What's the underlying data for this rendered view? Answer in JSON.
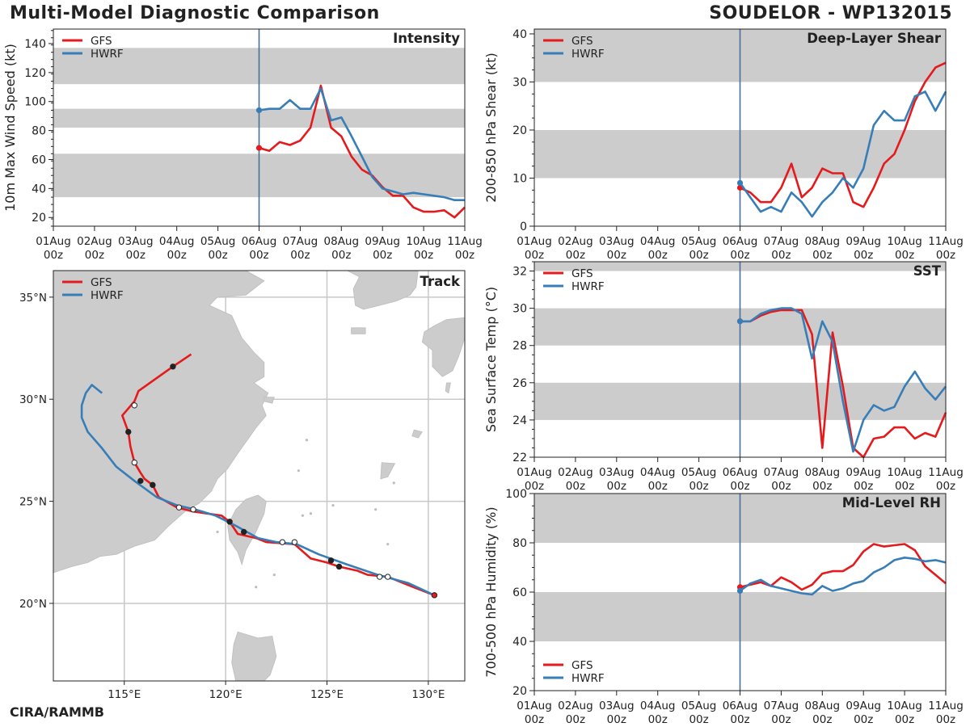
{
  "header": {
    "title": "Multi-Model Diagnostic Comparison",
    "storm": "SOUDELOR - WP132015",
    "credit": "CIRA/RAMMB"
  },
  "colors": {
    "gfs": "#e41a1c",
    "hwrf": "#377eb8",
    "band": "#cccccc",
    "land": "#cccccc",
    "vline": "#4a6f99"
  },
  "legend": [
    "GFS",
    "HWRF"
  ],
  "time_ticks": [
    "01Aug\n00z",
    "02Aug\n00z",
    "03Aug\n00z",
    "04Aug\n00z",
    "05Aug\n00z",
    "06Aug\n00z",
    "07Aug\n00z",
    "08Aug\n00z",
    "09Aug\n00z",
    "10Aug\n00z",
    "11Aug\n00z"
  ],
  "chart_data": [
    {
      "id": "intensity",
      "type": "line",
      "title": "Intensity",
      "ylabel": "10m Max Wind Speed (kt)",
      "xlabel": "",
      "xlim": [
        0,
        240
      ],
      "ylim": [
        14,
        150
      ],
      "yticks": [
        20,
        40,
        60,
        80,
        100,
        120,
        140
      ],
      "bands": [
        [
          34,
          64
        ],
        [
          82,
          95
        ],
        [
          112,
          137
        ]
      ],
      "vline": 120,
      "legend_pos": "top-left",
      "series": [
        {
          "name": "GFS",
          "x": [
            120,
            126,
            132,
            138,
            144,
            150,
            156,
            162,
            168,
            174,
            180,
            186,
            192,
            198,
            204,
            210,
            216,
            222,
            228,
            234,
            240
          ],
          "y": [
            68,
            66,
            72,
            70,
            73,
            82,
            111,
            82,
            76,
            62,
            53,
            49,
            41,
            35,
            35,
            27,
            24,
            24,
            25,
            20,
            27
          ]
        },
        {
          "name": "HWRF",
          "x": [
            120,
            126,
            132,
            138,
            144,
            150,
            156,
            162,
            168,
            174,
            180,
            186,
            192,
            198,
            204,
            210,
            216,
            222,
            228,
            234,
            240
          ],
          "y": [
            94,
            95,
            95,
            101,
            95,
            95,
            109,
            87,
            89,
            76,
            62,
            48,
            40,
            38,
            36,
            37,
            36,
            35,
            34,
            32,
            32
          ]
        }
      ]
    },
    {
      "id": "shear",
      "type": "line",
      "title": "Deep-Layer Shear",
      "ylabel": "200-850 hPa Shear (kt)",
      "xlabel": "",
      "xlim": [
        0,
        240
      ],
      "ylim": [
        0,
        41
      ],
      "yticks": [
        0,
        10,
        20,
        30,
        40
      ],
      "bands": [
        [
          10,
          20
        ],
        [
          30,
          41
        ]
      ],
      "vline": 120,
      "legend_pos": "top-left",
      "series": [
        {
          "name": "GFS",
          "x": [
            120,
            126,
            132,
            138,
            144,
            150,
            156,
            162,
            168,
            174,
            180,
            186,
            192,
            198,
            204,
            210,
            216,
            222,
            228,
            234,
            240
          ],
          "y": [
            8,
            7,
            5,
            5,
            8,
            13,
            6,
            8,
            12,
            11,
            11,
            5,
            4,
            8,
            13,
            15,
            20,
            26,
            30,
            33,
            34
          ]
        },
        {
          "name": "HWRF",
          "x": [
            120,
            126,
            132,
            138,
            144,
            150,
            156,
            162,
            168,
            174,
            180,
            186,
            192,
            198,
            204,
            210,
            216,
            222,
            228,
            234,
            240
          ],
          "y": [
            9,
            6,
            3,
            4,
            3,
            7,
            5,
            2,
            5,
            7,
            10,
            8,
            12,
            21,
            24,
            22,
            22,
            27,
            28,
            24,
            28
          ]
        }
      ]
    },
    {
      "id": "sst",
      "type": "line",
      "title": "SST",
      "ylabel": "Sea Surface Temp (°C)",
      "xlabel": "",
      "xlim": [
        0,
        240
      ],
      "ylim": [
        22,
        32.5
      ],
      "yticks": [
        22,
        24,
        26,
        28,
        30,
        32
      ],
      "bands": [
        [
          24,
          26
        ],
        [
          28,
          30
        ],
        [
          32,
          32.5
        ]
      ],
      "vline": 120,
      "legend_pos": "top-left",
      "series": [
        {
          "name": "GFS",
          "x": [
            120,
            126,
            132,
            138,
            144,
            150,
            156,
            162,
            168,
            174,
            180,
            186,
            192,
            198,
            204,
            210,
            216,
            222,
            228,
            234,
            240
          ],
          "y": [
            29.3,
            29.3,
            29.6,
            29.8,
            29.9,
            29.9,
            29.9,
            28.6,
            22.5,
            28.7,
            25.8,
            22.5,
            22.0,
            23.0,
            23.1,
            23.6,
            23.6,
            23.0,
            23.3,
            23.1,
            24.4
          ]
        },
        {
          "name": "HWRF",
          "x": [
            120,
            126,
            132,
            138,
            144,
            150,
            156,
            162,
            168,
            174,
            180,
            186,
            192,
            198,
            204,
            210,
            216,
            222,
            228,
            234,
            240
          ],
          "y": [
            29.3,
            29.3,
            29.7,
            29.9,
            30.0,
            30.0,
            29.7,
            27.3,
            29.3,
            28.2,
            25.0,
            22.3,
            24.0,
            24.8,
            24.5,
            24.7,
            25.8,
            26.6,
            25.7,
            25.1,
            25.8
          ]
        }
      ]
    },
    {
      "id": "rh",
      "type": "line",
      "title": "Mid-Level RH",
      "ylabel": "700-500 hPa Humidity (%)",
      "xlabel": "",
      "xlim": [
        0,
        240
      ],
      "ylim": [
        20,
        100
      ],
      "yticks": [
        20,
        40,
        60,
        80,
        100
      ],
      "bands": [
        [
          40,
          60
        ],
        [
          80,
          100
        ]
      ],
      "vline": 120,
      "legend_pos": "bottom-left",
      "series": [
        {
          "name": "GFS",
          "x": [
            120,
            126,
            132,
            138,
            144,
            150,
            156,
            162,
            168,
            174,
            180,
            186,
            192,
            198,
            204,
            210,
            216,
            222,
            228,
            234,
            240
          ],
          "y": [
            62,
            63,
            64,
            62.5,
            66,
            64,
            61,
            63,
            67.5,
            68.5,
            68.5,
            71,
            76.5,
            79.5,
            78.5,
            79,
            79.5,
            77,
            70.5,
            67,
            63.5
          ]
        },
        {
          "name": "HWRF",
          "x": [
            120,
            126,
            132,
            138,
            144,
            150,
            156,
            162,
            168,
            174,
            180,
            186,
            192,
            198,
            204,
            210,
            216,
            222,
            228,
            234,
            240
          ],
          "y": [
            60.5,
            63.5,
            65,
            62.5,
            61.5,
            60.5,
            59.5,
            59,
            62.5,
            60.5,
            61.5,
            63.5,
            64.5,
            68,
            70,
            73,
            74,
            73.5,
            72.5,
            73,
            72
          ]
        }
      ]
    },
    {
      "id": "track",
      "type": "scatter",
      "title": "Track",
      "xlabel": "",
      "ylabel": "",
      "xlim": [
        111.5,
        131.8
      ],
      "ylim": [
        16.2,
        36.3
      ],
      "xticks": [
        115,
        120,
        125,
        130
      ],
      "xtick_labels": [
        "115°E",
        "120°E",
        "125°E",
        "130°E"
      ],
      "yticks": [
        20,
        25,
        30,
        35
      ],
      "ytick_labels": [
        "20°N",
        "25°N",
        "30°N",
        "35°N"
      ],
      "legend_pos": "top-left",
      "series": [
        {
          "name": "GFS",
          "lon": [
            130.3,
            129.0,
            128.0,
            127.0,
            126.5,
            125.6,
            125.0,
            124.2,
            123.4,
            122.0,
            121.5,
            120.6,
            120.2,
            119.8,
            118.4,
            117.6,
            116.7,
            116.4,
            116.0,
            115.8,
            115.5,
            115.3,
            115.2,
            114.9,
            115.5,
            115.7,
            117.4,
            118.3
          ],
          "lat": [
            20.4,
            20.9,
            21.3,
            21.4,
            21.6,
            21.8,
            22.0,
            22.2,
            22.9,
            23.0,
            23.2,
            23.4,
            24.0,
            24.3,
            24.5,
            24.7,
            25.2,
            25.8,
            26.1,
            26.4,
            26.9,
            27.7,
            28.4,
            29.2,
            29.9,
            30.4,
            31.6,
            32.2
          ],
          "dots_lon": [
            130.3,
            128.0,
            127.6,
            125.6,
            125.2,
            123.4,
            122.8,
            120.9,
            120.2,
            118.4,
            117.7,
            116.4,
            115.8,
            115.5,
            115.2,
            115.5,
            117.4
          ],
          "dots_lat": [
            20.4,
            21.3,
            21.3,
            21.8,
            22.1,
            23.0,
            23.0,
            23.5,
            24.0,
            24.6,
            24.7,
            25.8,
            26.0,
            26.9,
            28.4,
            29.7,
            31.6
          ],
          "dots_fill": [
            "#e41a1c",
            "#ffffff",
            "#ffffff",
            "#222222",
            "#222222",
            "#ffffff",
            "#ffffff",
            "#222222",
            "#222222",
            "#ffffff",
            "#ffffff",
            "#222222",
            "#222222",
            "#ffffff",
            "#222222",
            "#ffffff",
            "#222222"
          ]
        },
        {
          "name": "HWRF",
          "lon": [
            130.3,
            129.0,
            127.5,
            126.0,
            124.6,
            123.5,
            122.5,
            121.6,
            120.5,
            119.5,
            118.5,
            117.6,
            116.6,
            115.5,
            114.6,
            113.9,
            113.2,
            112.9,
            112.9,
            113.1,
            113.4,
            113.9
          ],
          "lat": [
            20.4,
            21.0,
            21.4,
            21.9,
            22.4,
            22.9,
            23.0,
            23.2,
            23.8,
            24.3,
            24.6,
            24.8,
            25.2,
            26.0,
            26.7,
            27.6,
            28.4,
            29.1,
            29.7,
            30.3,
            30.7,
            30.3
          ]
        }
      ]
    }
  ]
}
